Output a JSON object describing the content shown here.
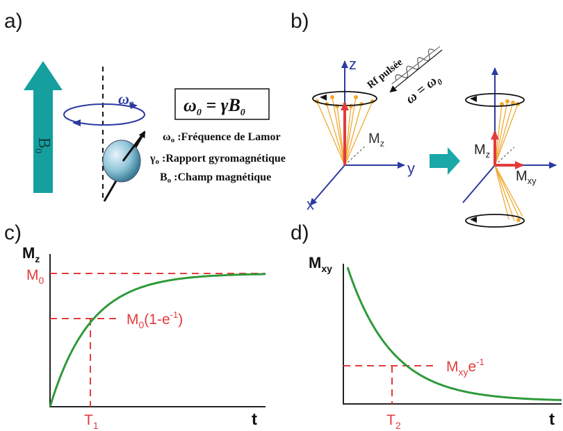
{
  "panels": {
    "a": {
      "label": "a)"
    },
    "b": {
      "label": "b)"
    },
    "c": {
      "label": "c)"
    },
    "d": {
      "label": "d)"
    }
  },
  "panel_a": {
    "field_label": "B",
    "field_sub": "0",
    "omega_label": "ω",
    "omega_sub": "0",
    "formula_lhs": "ω",
    "formula_lhs_sub": "0",
    "formula_rhs": " = γB",
    "formula_rhs_sub": "0",
    "legend": [
      {
        "sym": "ω",
        "sub": "o",
        "text": " :Fréquence de Lamor"
      },
      {
        "sym": "γ",
        "sub": "o",
        "text": " :Rapport gyromagnétique"
      },
      {
        "sym": "B",
        "sub": "o",
        "text": " :Champ magnétique"
      }
    ]
  },
  "panel_b": {
    "rf_label": "Rf  pulsée",
    "omega_eq": "ω = ω",
    "omega_eq_sub": "0",
    "axis_z": "z",
    "axis_y": "y",
    "axis_x": "x",
    "mz_label": "M",
    "mz_sub": "z",
    "mz2_label": "M",
    "mz2_sub": "z",
    "mxy_label": "M",
    "mxy_sub": "xy"
  },
  "panel_c": {
    "ylabel": "M",
    "ylabel_sub": "z",
    "m0_label": "M",
    "m0_sub": "0",
    "curve_label": "M",
    "curve_label_sub": "0",
    "curve_label_rest": "(1-e",
    "curve_label_sup": "-1",
    "curve_label_end": ")",
    "t_label": "T",
    "t_sub": "1",
    "xlabel": "t"
  },
  "panel_d": {
    "ylabel": "M",
    "ylabel_sub": "xy",
    "curve_label": "M",
    "curve_label_sub": "xy",
    "curve_label_rest": "e",
    "curve_label_sup": "-1",
    "t_label": "T",
    "t_sub": "2",
    "xlabel": "t"
  },
  "colors": {
    "teal": "#169f9f",
    "red": "#e23b3b",
    "green": "#2e9a3a",
    "blue": "#2b3aa0",
    "orange": "#f0a830"
  }
}
